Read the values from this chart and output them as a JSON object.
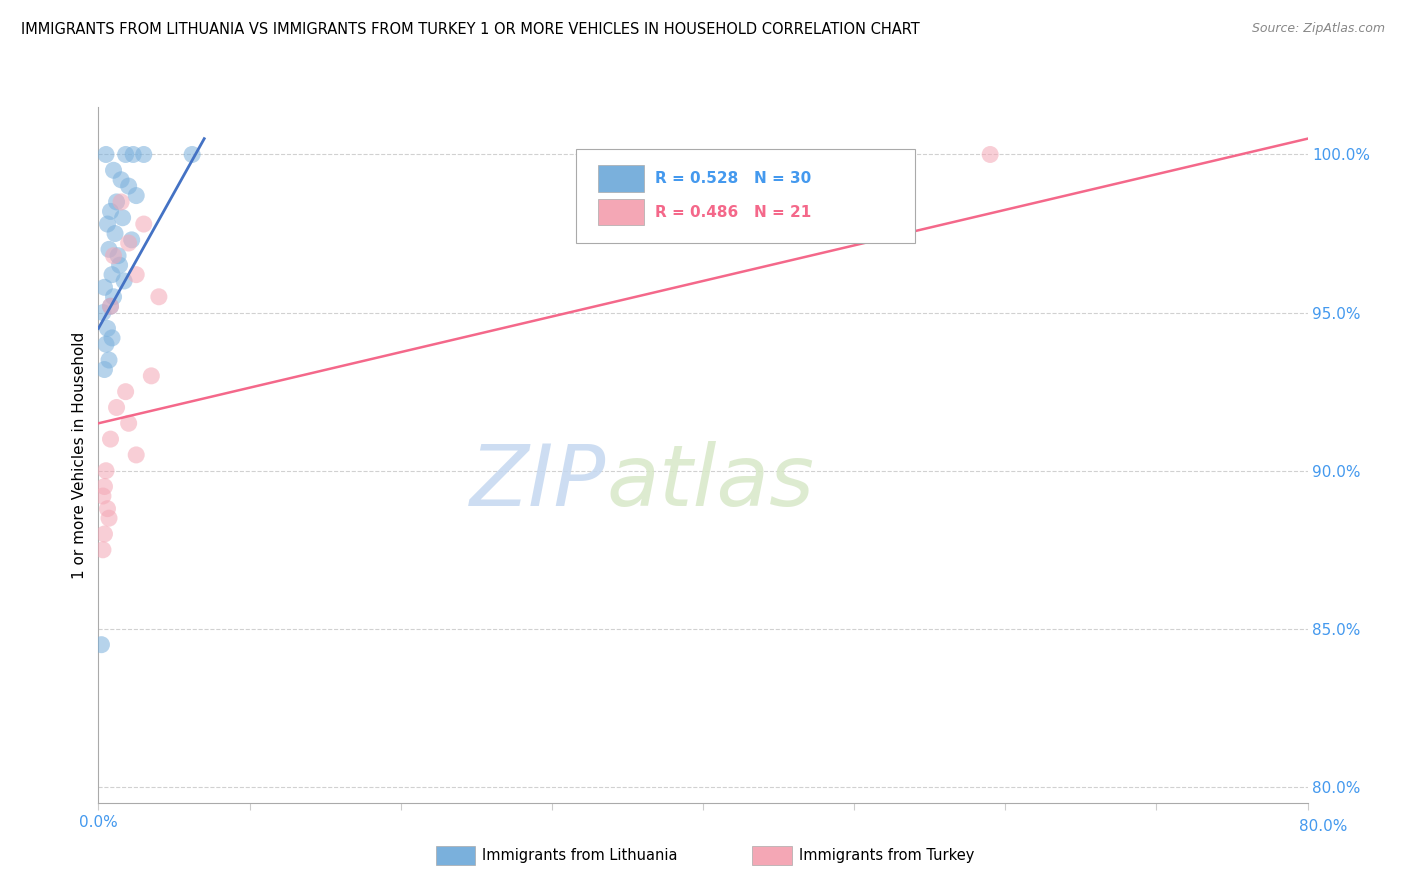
{
  "title": "IMMIGRANTS FROM LITHUANIA VS IMMIGRANTS FROM TURKEY 1 OR MORE VEHICLES IN HOUSEHOLD CORRELATION CHART",
  "source": "Source: ZipAtlas.com",
  "ylabel": "1 or more Vehicles in Household",
  "legend_blue_label": "Immigrants from Lithuania",
  "legend_pink_label": "Immigrants from Turkey",
  "R_blue": 0.528,
  "N_blue": 30,
  "R_pink": 0.486,
  "N_pink": 21,
  "blue_color": "#7ab0dc",
  "pink_color": "#f4a7b5",
  "blue_line_color": "#4472c4",
  "pink_line_color": "#f4688a",
  "watermark_zip": "ZIP",
  "watermark_atlas": "atlas",
  "blue_scatter": [
    [
      0.005,
      100.0
    ],
    [
      0.018,
      100.0
    ],
    [
      0.023,
      100.0
    ],
    [
      0.03,
      100.0
    ],
    [
      0.062,
      100.0
    ],
    [
      0.01,
      99.5
    ],
    [
      0.015,
      99.2
    ],
    [
      0.02,
      99.0
    ],
    [
      0.025,
      98.7
    ],
    [
      0.012,
      98.5
    ],
    [
      0.008,
      98.2
    ],
    [
      0.016,
      98.0
    ],
    [
      0.006,
      97.8
    ],
    [
      0.011,
      97.5
    ],
    [
      0.022,
      97.3
    ],
    [
      0.007,
      97.0
    ],
    [
      0.013,
      96.8
    ],
    [
      0.014,
      96.5
    ],
    [
      0.009,
      96.2
    ],
    [
      0.017,
      96.0
    ],
    [
      0.004,
      95.8
    ],
    [
      0.01,
      95.5
    ],
    [
      0.008,
      95.2
    ],
    [
      0.003,
      95.0
    ],
    [
      0.006,
      94.5
    ],
    [
      0.009,
      94.2
    ],
    [
      0.005,
      94.0
    ],
    [
      0.007,
      93.5
    ],
    [
      0.004,
      93.2
    ],
    [
      0.002,
      84.5
    ]
  ],
  "pink_scatter": [
    [
      0.59,
      100.0
    ],
    [
      0.015,
      98.5
    ],
    [
      0.03,
      97.8
    ],
    [
      0.02,
      97.2
    ],
    [
      0.01,
      96.8
    ],
    [
      0.025,
      96.2
    ],
    [
      0.04,
      95.5
    ],
    [
      0.008,
      95.2
    ],
    [
      0.035,
      93.0
    ],
    [
      0.018,
      92.5
    ],
    [
      0.012,
      92.0
    ],
    [
      0.02,
      91.5
    ],
    [
      0.008,
      91.0
    ],
    [
      0.025,
      90.5
    ],
    [
      0.005,
      90.0
    ],
    [
      0.004,
      89.5
    ],
    [
      0.003,
      89.2
    ],
    [
      0.006,
      88.8
    ],
    [
      0.007,
      88.5
    ],
    [
      0.004,
      88.0
    ],
    [
      0.003,
      87.5
    ]
  ],
  "xlim": [
    0.0,
    0.8
  ],
  "ylim": [
    79.5,
    101.5
  ],
  "x_ticks": [
    0.0,
    0.1,
    0.2,
    0.3,
    0.4,
    0.5,
    0.6,
    0.7,
    0.8
  ],
  "y_ticks": [
    80.0,
    85.0,
    90.0,
    95.0,
    100.0
  ],
  "blue_trend_x": [
    0.0,
    0.07
  ],
  "blue_trend_y": [
    94.5,
    100.5
  ],
  "pink_trend_x": [
    0.0,
    0.8
  ],
  "pink_trend_y": [
    91.5,
    100.5
  ]
}
